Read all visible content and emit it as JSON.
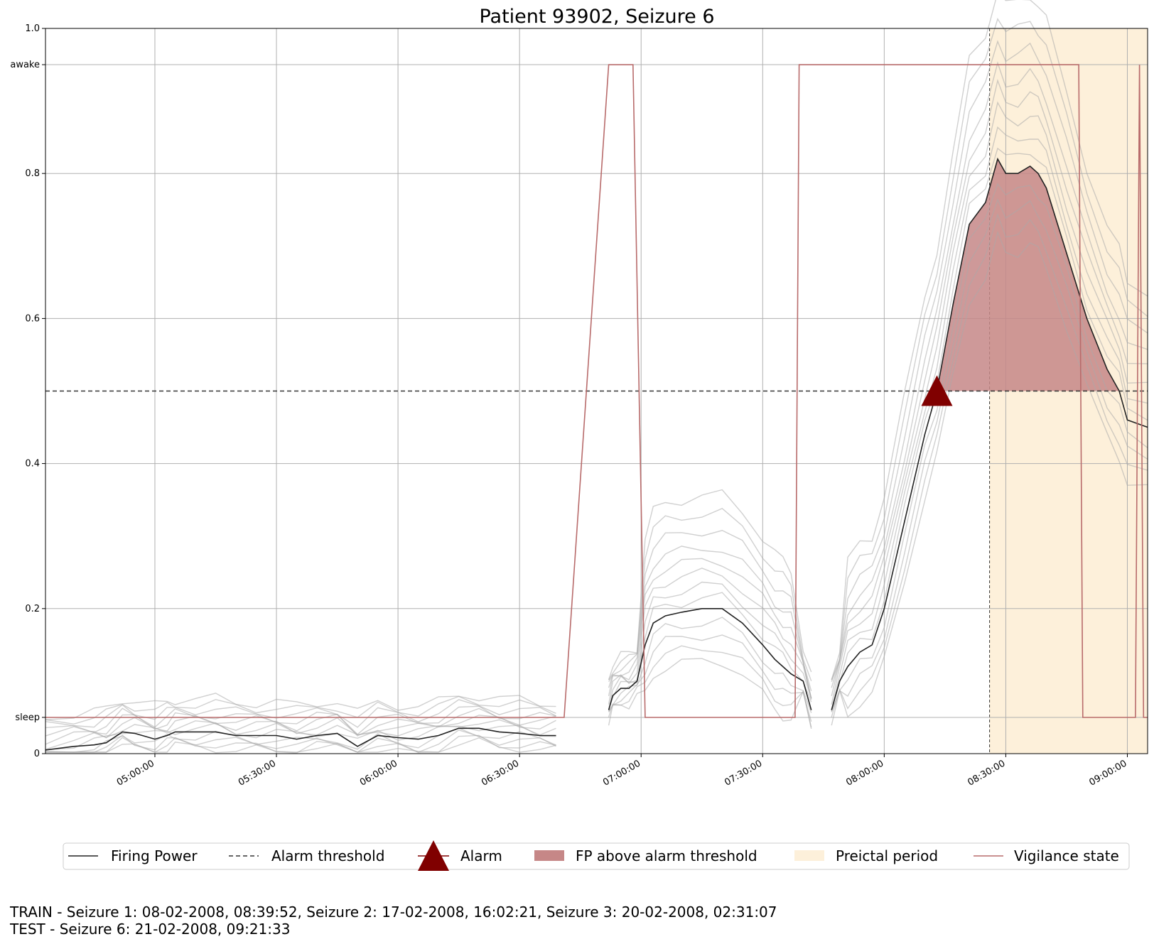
{
  "chart_data": {
    "type": "line",
    "title": "Patient 93902, Seizure 6",
    "xlabel": "",
    "ylabel": "",
    "x_axis": {
      "type": "time",
      "range": [
        "04:33:00",
        "09:05:00"
      ],
      "tick_labels": [
        "05:00:00",
        "05:30:00",
        "06:00:00",
        "06:30:00",
        "07:00:00",
        "07:30:00",
        "08:00:00",
        "08:30:00",
        "09:00:00"
      ]
    },
    "y_axis": {
      "range": [
        0,
        1.0
      ],
      "tick_labels": [
        "0",
        "0.2",
        "0.4",
        "0.6",
        "0.8",
        "1.0"
      ],
      "state_tick_labels": {
        "awake": 0.95,
        "sleep": 0.05
      }
    },
    "grid": true,
    "alarm_threshold": 0.5,
    "alarm": {
      "time": "08:13:00",
      "value": 0.5
    },
    "preictal_period": [
      "08:26:00",
      "09:05:00"
    ],
    "colors": {
      "firing_power": "#222222",
      "firing_power_runs": "#aaaaaa",
      "threshold": "#333333",
      "alarm": "#800000",
      "fp_above_threshold": "#c68787",
      "preictal": "#fdf0da",
      "vigilance": "#b86b6b"
    },
    "series": [
      {
        "name": "Firing Power",
        "segments": [
          {
            "x": [
              "04:33:00",
              "04:40:00",
              "04:45:00",
              "04:48:00",
              "04:52:00",
              "04:55:00",
              "05:00:00",
              "05:03:00",
              "05:05:00",
              "05:10:00",
              "05:15:00",
              "05:20:00",
              "05:25:00",
              "05:30:00",
              "05:35:00",
              "05:40:00",
              "05:45:00",
              "05:50:00",
              "05:55:00",
              "06:00:00",
              "06:05:00",
              "06:10:00",
              "06:15:00",
              "06:20:00",
              "06:25:00",
              "06:30:00",
              "06:35:00",
              "06:39:00"
            ],
            "y": [
              0.005,
              0.01,
              0.012,
              0.015,
              0.03,
              0.028,
              0.02,
              0.025,
              0.03,
              0.03,
              0.03,
              0.025,
              0.025,
              0.025,
              0.02,
              0.025,
              0.028,
              0.01,
              0.025,
              0.022,
              0.02,
              0.025,
              0.035,
              0.035,
              0.03,
              0.028,
              0.025,
              0.025
            ]
          },
          {
            "x": [
              "06:52:00",
              "06:53:00",
              "06:55:00",
              "06:57:00",
              "06:59:00",
              "07:01:00",
              "07:03:00",
              "07:06:00",
              "07:10:00",
              "07:15:00",
              "07:20:00",
              "07:25:00",
              "07:30:00",
              "07:33:00",
              "07:35:00",
              "07:37:00",
              "07:40:00",
              "07:42:00"
            ],
            "y": [
              0.06,
              0.08,
              0.09,
              0.09,
              0.1,
              0.15,
              0.18,
              0.19,
              0.195,
              0.2,
              0.2,
              0.18,
              0.15,
              0.13,
              0.12,
              0.11,
              0.1,
              0.06
            ]
          },
          {
            "x": [
              "07:47:00",
              "07:49:00",
              "07:51:00",
              "07:54:00",
              "07:57:00",
              "08:00:00",
              "08:05:00",
              "08:10:00",
              "08:13:00",
              "08:17:00",
              "08:21:00",
              "08:25:00",
              "08:28:00",
              "08:30:00",
              "08:33:00",
              "08:36:00",
              "08:38:00",
              "08:40:00",
              "08:45:00",
              "08:50:00",
              "08:55:00",
              "08:58:00",
              "09:00:00",
              "09:05:00"
            ],
            "y": [
              0.06,
              0.1,
              0.12,
              0.14,
              0.15,
              0.2,
              0.32,
              0.44,
              0.5,
              0.62,
              0.73,
              0.76,
              0.82,
              0.8,
              0.8,
              0.81,
              0.8,
              0.78,
              0.69,
              0.6,
              0.53,
              0.5,
              0.46,
              0.45
            ]
          }
        ]
      },
      {
        "name": "Vigilance state",
        "x": [
          "04:33:00",
          "06:41:00",
          "06:52:00",
          "06:58:00",
          "07:01:00",
          "07:38:00",
          "07:39:00",
          "08:48:00",
          "08:49:00",
          "09:02:00",
          "09:03:00",
          "09:04:00",
          "09:05:00"
        ],
        "y": [
          "sleep",
          "sleep",
          "awake",
          "awake",
          "sleep",
          "sleep",
          "awake",
          "awake",
          "sleep",
          "sleep",
          "awake",
          "sleep",
          "sleep"
        ]
      }
    ],
    "legend": {
      "placement": "bottom",
      "entries": [
        "Firing Power",
        "Alarm threshold",
        "Alarm",
        "FP above alarm threshold",
        "Preictal period",
        "Vigilance state"
      ]
    }
  },
  "footer": {
    "train": "TRAIN - Seizure 1: 08-02-2008, 08:39:52, Seizure 2: 17-02-2008, 16:02:21, Seizure 3: 20-02-2008, 02:31:07",
    "test": "TEST - Seizure 6: 21-02-2008, 09:21:33"
  }
}
